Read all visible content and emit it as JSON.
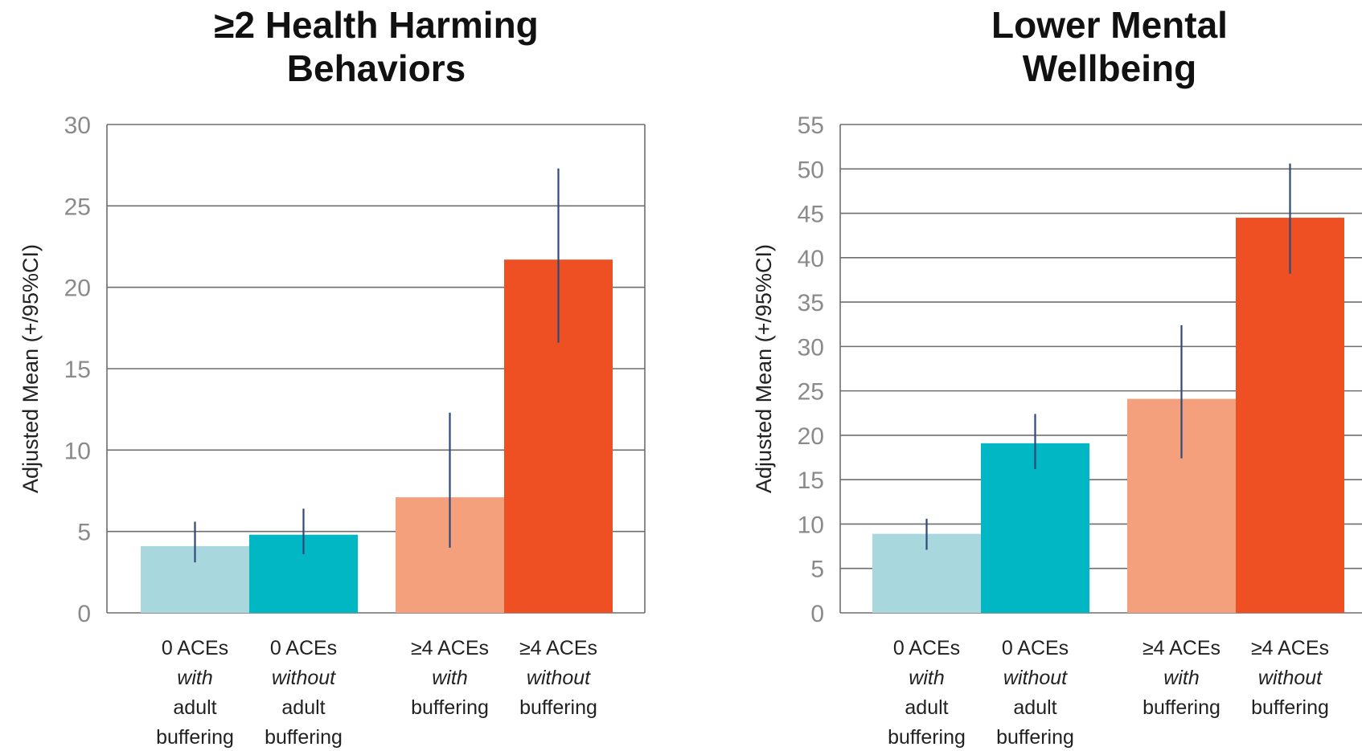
{
  "chart_data": [
    {
      "type": "bar",
      "title_lines": [
        "≥2 Health Harming",
        "Behaviors"
      ],
      "ylabel": "Adjusted Mean (+/95%CI)",
      "ylim": [
        0,
        30
      ],
      "yticks": [
        0,
        5,
        10,
        15,
        20,
        25,
        30
      ],
      "grid": true,
      "categories": [
        {
          "lines": [
            "0 ACEs",
            "with",
            "adult",
            "buffering"
          ],
          "group": 1
        },
        {
          "lines": [
            "0 ACEs",
            "without",
            "adult",
            "buffering"
          ],
          "group": 1
        },
        {
          "lines": [
            "≥4 ACEs",
            "with",
            "buffering"
          ],
          "group": 2
        },
        {
          "lines": [
            "≥4 ACEs",
            "without",
            "buffering"
          ],
          "group": 2
        }
      ],
      "values": [
        4.1,
        4.8,
        7.1,
        21.7
      ],
      "ci_low": [
        3.1,
        3.6,
        4.0,
        16.6
      ],
      "ci_high": [
        5.6,
        6.4,
        12.3,
        27.3
      ],
      "colors": [
        "#a8d8dd",
        "#00b7c3",
        "#f5a07c",
        "#ef5023"
      ]
    },
    {
      "type": "bar",
      "title_lines": [
        "Lower Mental",
        "Wellbeing"
      ],
      "ylabel": "Adjusted Mean (+/95%CI)",
      "ylim": [
        0,
        55
      ],
      "yticks": [
        0,
        5,
        10,
        15,
        20,
        25,
        30,
        35,
        40,
        45,
        50,
        55
      ],
      "grid": true,
      "categories": [
        {
          "lines": [
            "0 ACEs",
            "with",
            "adult",
            "buffering"
          ],
          "group": 1
        },
        {
          "lines": [
            "0 ACEs",
            "without",
            "adult",
            "buffering"
          ],
          "group": 1
        },
        {
          "lines": [
            "≥4 ACEs",
            "with",
            "buffering"
          ],
          "group": 2
        },
        {
          "lines": [
            "≥4 ACEs",
            "without",
            "buffering"
          ],
          "group": 2
        }
      ],
      "values": [
        8.9,
        19.1,
        24.1,
        44.5
      ],
      "ci_low": [
        7.1,
        16.2,
        17.4,
        38.2
      ],
      "ci_high": [
        10.6,
        22.4,
        32.4,
        50.6
      ],
      "colors": [
        "#a8d8dd",
        "#00b7c3",
        "#f5a07c",
        "#ef5023"
      ]
    }
  ]
}
